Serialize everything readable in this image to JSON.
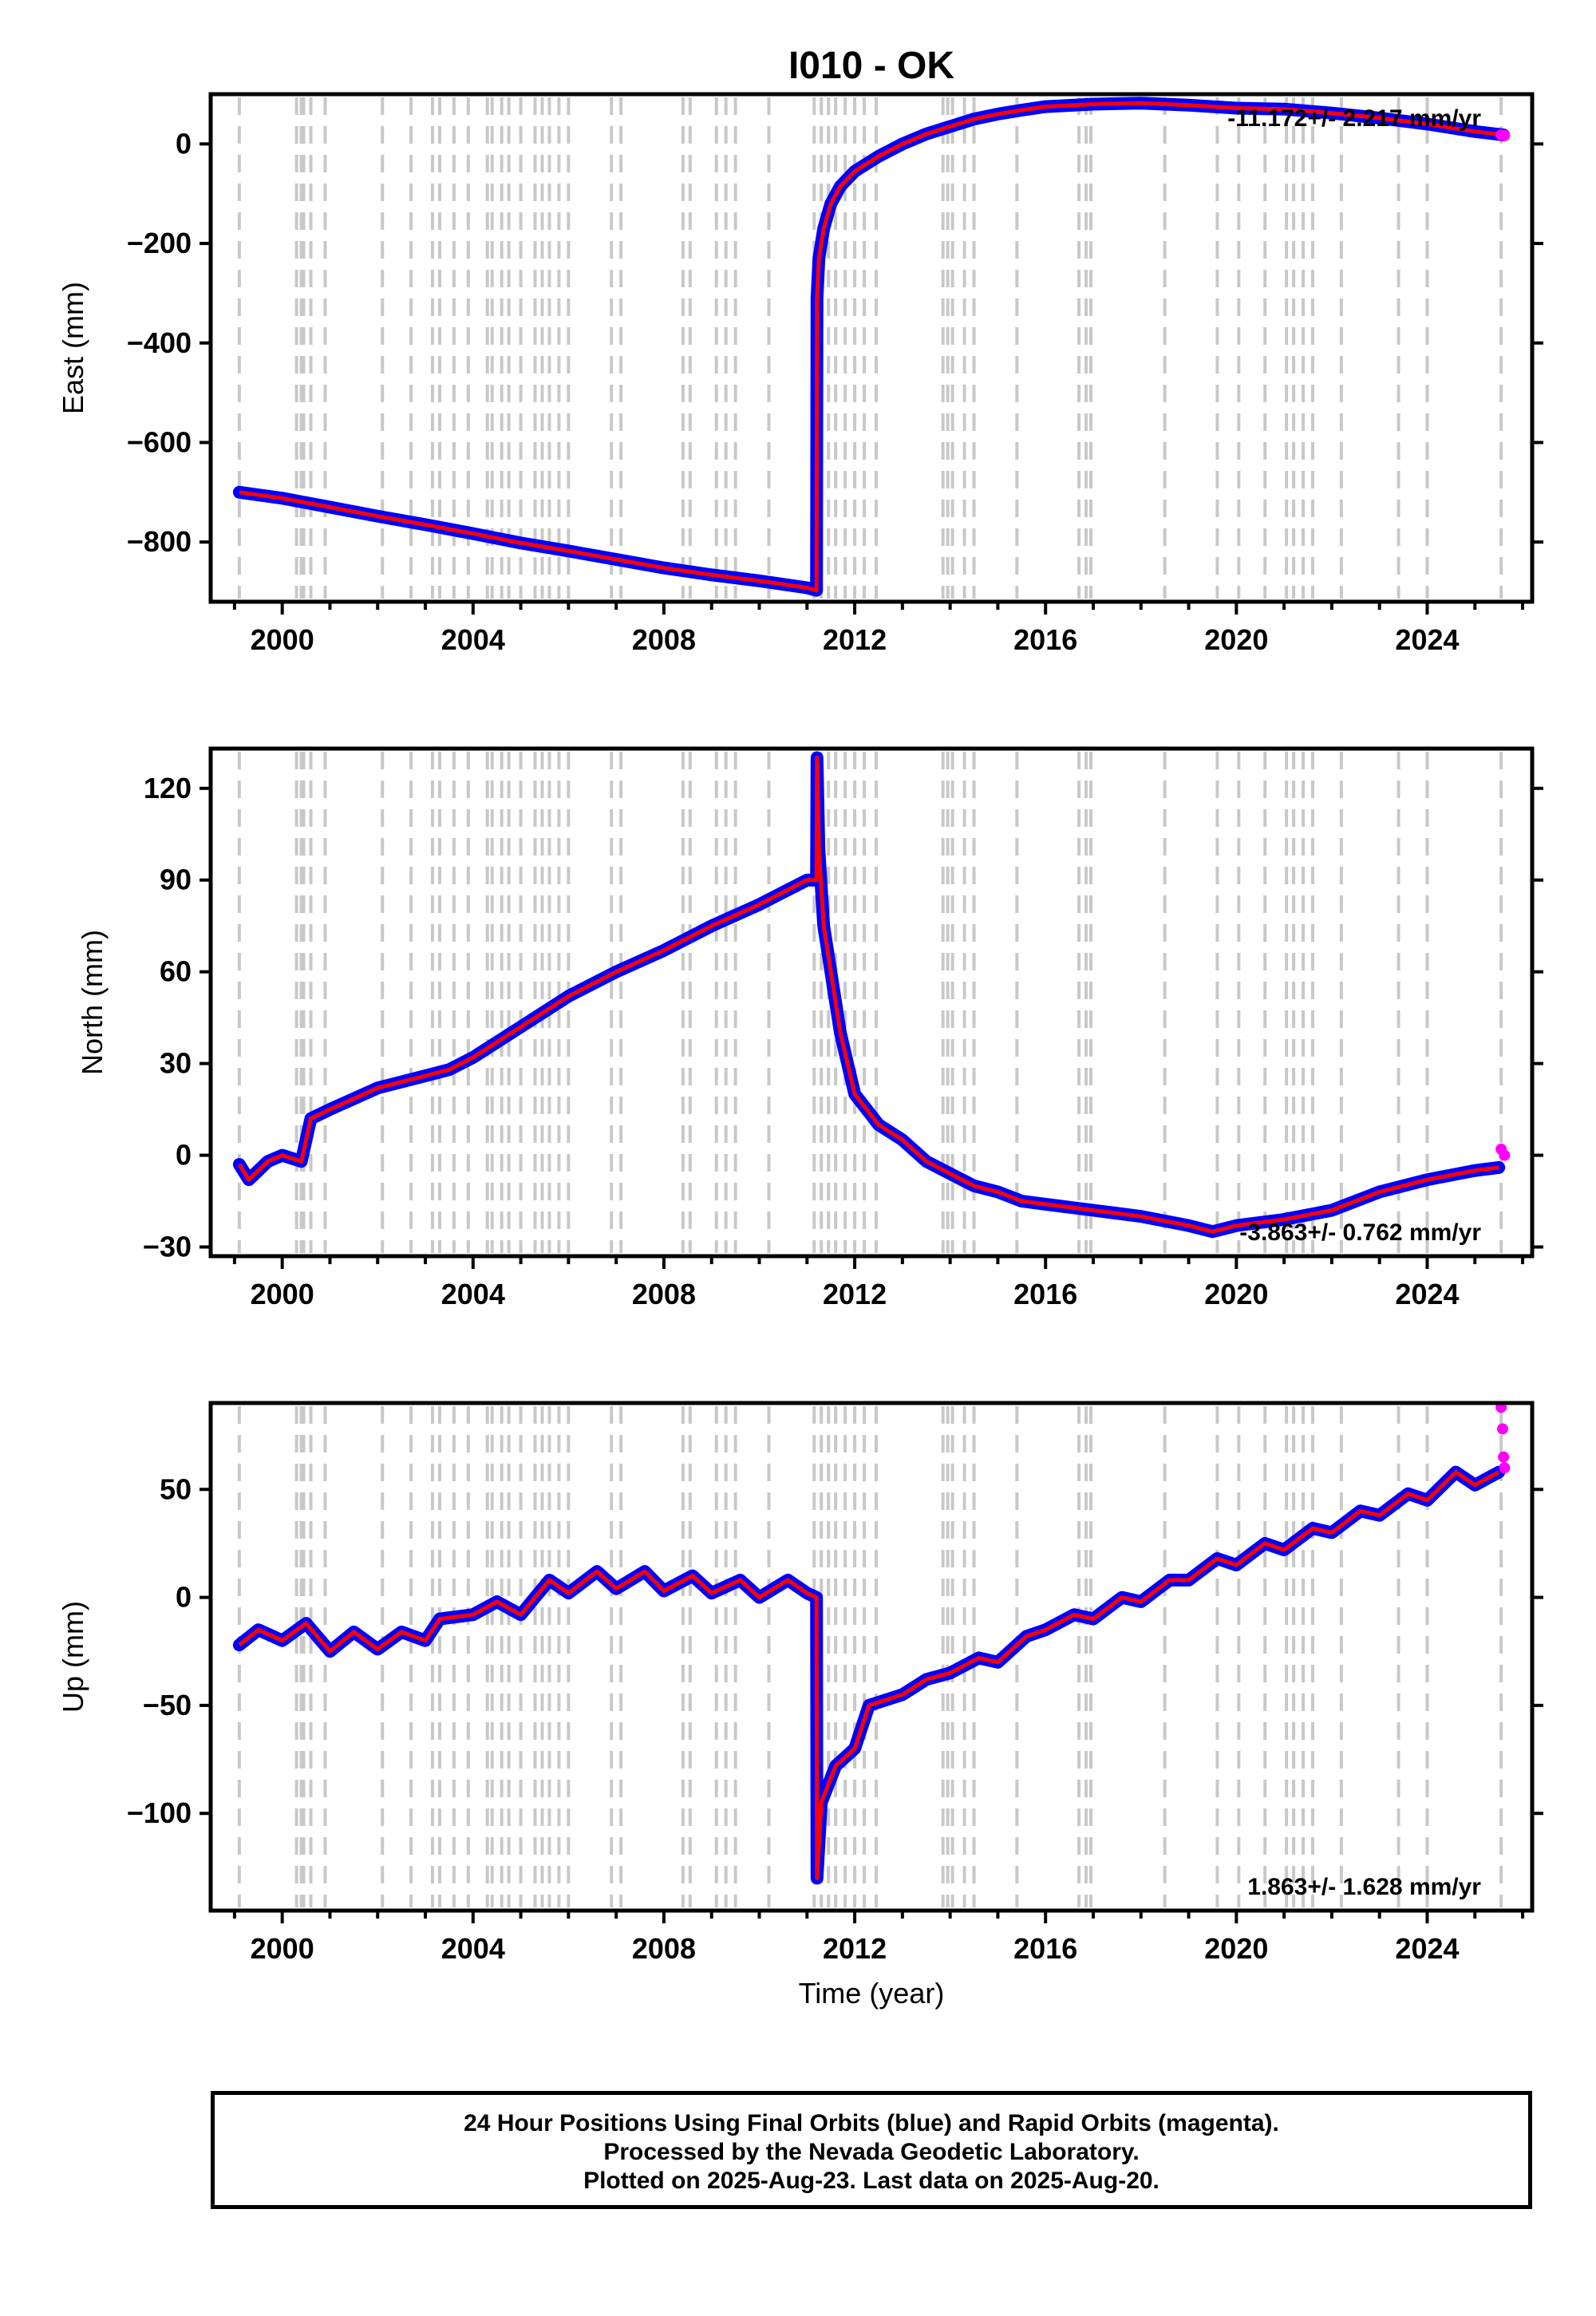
{
  "figure": {
    "title": "I010 - OK",
    "xlabel": "Time (year)"
  },
  "chart_data": [
    {
      "type": "line",
      "ylabel": "East (mm)",
      "xlim": [
        1998.5,
        2026.2
      ],
      "ylim": [
        -920,
        100
      ],
      "yticks": [
        0,
        -200,
        -400,
        -600,
        -800
      ],
      "xticks": [
        2000,
        2004,
        2008,
        2012,
        2016,
        2020,
        2024
      ],
      "rate_text": "-11.172+/- 2.217 mm/yr",
      "series": [
        {
          "color": "#0000ff",
          "values": [
            [
              1999.1,
              -700
            ],
            [
              2000.0,
              -712
            ],
            [
              2001.0,
              -730
            ],
            [
              2002.0,
              -748
            ],
            [
              2003.0,
              -765
            ],
            [
              2004.0,
              -783
            ],
            [
              2005.0,
              -802
            ],
            [
              2006.0,
              -818
            ],
            [
              2007.0,
              -835
            ],
            [
              2008.0,
              -852
            ],
            [
              2009.0,
              -866
            ],
            [
              2010.0,
              -878
            ],
            [
              2011.0,
              -892
            ],
            [
              2011.2,
              -897
            ],
            [
              2011.21,
              -310
            ],
            [
              2011.25,
              -230
            ],
            [
              2011.35,
              -170
            ],
            [
              2011.5,
              -120
            ],
            [
              2011.7,
              -85
            ],
            [
              2012.0,
              -55
            ],
            [
              2012.5,
              -25
            ],
            [
              2013.0,
              0
            ],
            [
              2013.5,
              20
            ],
            [
              2014.0,
              35
            ],
            [
              2014.5,
              50
            ],
            [
              2015.0,
              60
            ],
            [
              2015.5,
              68
            ],
            [
              2016.0,
              75
            ],
            [
              2017.0,
              80
            ],
            [
              2018.0,
              82
            ],
            [
              2019.0,
              78
            ],
            [
              2020.0,
              72
            ],
            [
              2021.0,
              70
            ],
            [
              2022.0,
              62
            ],
            [
              2023.0,
              52
            ],
            [
              2024.0,
              40
            ],
            [
              2025.0,
              25
            ],
            [
              2025.6,
              18
            ]
          ]
        },
        {
          "color": "#ff00ff",
          "values": [
            [
              2025.55,
              18
            ],
            [
              2025.62,
              17
            ]
          ]
        }
      ]
    },
    {
      "type": "line",
      "ylabel": "North (mm)",
      "xlim": [
        1998.5,
        2026.2
      ],
      "ylim": [
        -33,
        133
      ],
      "yticks": [
        120,
        90,
        60,
        30,
        0,
        -30
      ],
      "xticks": [
        2000,
        2004,
        2008,
        2012,
        2016,
        2020,
        2024
      ],
      "rate_text": "-3.863+/- 0.762 mm/yr",
      "series": [
        {
          "color": "#0000ff",
          "values": [
            [
              1999.1,
              -3
            ],
            [
              1999.3,
              -8
            ],
            [
              1999.7,
              -2
            ],
            [
              2000.0,
              0
            ],
            [
              2000.4,
              -2
            ],
            [
              2000.6,
              12
            ],
            [
              2001.0,
              15
            ],
            [
              2002.0,
              22
            ],
            [
              2003.0,
              26
            ],
            [
              2003.5,
              28
            ],
            [
              2004.0,
              32
            ],
            [
              2005.0,
              42
            ],
            [
              2006.0,
              52
            ],
            [
              2007.0,
              60
            ],
            [
              2008.0,
              67
            ],
            [
              2009.0,
              75
            ],
            [
              2010.0,
              82
            ],
            [
              2011.0,
              90
            ],
            [
              2011.2,
              90
            ],
            [
              2011.21,
              130
            ],
            [
              2011.25,
              100
            ],
            [
              2011.35,
              75
            ],
            [
              2011.5,
              60
            ],
            [
              2011.7,
              40
            ],
            [
              2012.0,
              20
            ],
            [
              2012.5,
              10
            ],
            [
              2013.0,
              5
            ],
            [
              2013.5,
              -2
            ],
            [
              2014.0,
              -6
            ],
            [
              2014.5,
              -10
            ],
            [
              2015.0,
              -12
            ],
            [
              2015.5,
              -15
            ],
            [
              2016.0,
              -16
            ],
            [
              2017.0,
              -18
            ],
            [
              2018.0,
              -20
            ],
            [
              2019.0,
              -23
            ],
            [
              2019.5,
              -25
            ],
            [
              2020.0,
              -23
            ],
            [
              2021.0,
              -21
            ],
            [
              2022.0,
              -18
            ],
            [
              2023.0,
              -12
            ],
            [
              2024.0,
              -8
            ],
            [
              2025.0,
              -5
            ],
            [
              2025.5,
              -4
            ]
          ]
        },
        {
          "color": "#ff00ff",
          "values": [
            [
              2025.55,
              2
            ],
            [
              2025.62,
              0
            ]
          ]
        }
      ]
    },
    {
      "type": "line",
      "ylabel": "Up (mm)",
      "xlim": [
        1998.5,
        2026.2
      ],
      "ylim": [
        -145,
        90
      ],
      "yticks": [
        50,
        0,
        -50,
        -100
      ],
      "xticks": [
        2000,
        2004,
        2008,
        2012,
        2016,
        2020,
        2024
      ],
      "rate_text": "1.863+/- 1.628 mm/yr",
      "series": [
        {
          "color": "#0000ff",
          "values": [
            [
              1999.1,
              -22
            ],
            [
              1999.5,
              -15
            ],
            [
              2000.0,
              -20
            ],
            [
              2000.5,
              -12
            ],
            [
              2001.0,
              -25
            ],
            [
              2001.5,
              -16
            ],
            [
              2002.0,
              -24
            ],
            [
              2002.5,
              -16
            ],
            [
              2003.0,
              -20
            ],
            [
              2003.3,
              -10
            ],
            [
              2004.0,
              -8
            ],
            [
              2004.5,
              -2
            ],
            [
              2005.0,
              -8
            ],
            [
              2005.6,
              8
            ],
            [
              2006.0,
              2
            ],
            [
              2006.6,
              12
            ],
            [
              2007.0,
              4
            ],
            [
              2007.6,
              12
            ],
            [
              2008.0,
              3
            ],
            [
              2008.6,
              10
            ],
            [
              2009.0,
              2
            ],
            [
              2009.6,
              8
            ],
            [
              2010.0,
              0
            ],
            [
              2010.6,
              8
            ],
            [
              2011.0,
              2
            ],
            [
              2011.2,
              0
            ],
            [
              2011.21,
              -130
            ],
            [
              2011.3,
              -95
            ],
            [
              2011.6,
              -78
            ],
            [
              2012.0,
              -70
            ],
            [
              2012.3,
              -50
            ],
            [
              2013.0,
              -45
            ],
            [
              2013.5,
              -38
            ],
            [
              2014.0,
              -35
            ],
            [
              2014.6,
              -28
            ],
            [
              2015.0,
              -30
            ],
            [
              2015.6,
              -18
            ],
            [
              2016.0,
              -15
            ],
            [
              2016.6,
              -8
            ],
            [
              2017.0,
              -10
            ],
            [
              2017.6,
              0
            ],
            [
              2018.0,
              -2
            ],
            [
              2018.6,
              8
            ],
            [
              2019.0,
              8
            ],
            [
              2019.6,
              18
            ],
            [
              2020.0,
              15
            ],
            [
              2020.6,
              25
            ],
            [
              2021.0,
              22
            ],
            [
              2021.6,
              32
            ],
            [
              2022.0,
              30
            ],
            [
              2022.6,
              40
            ],
            [
              2023.0,
              38
            ],
            [
              2023.6,
              48
            ],
            [
              2024.0,
              45
            ],
            [
              2024.6,
              58
            ],
            [
              2025.0,
              52
            ],
            [
              2025.5,
              58
            ]
          ]
        },
        {
          "color": "#ff00ff",
          "values": [
            [
              2025.55,
              88
            ],
            [
              2025.58,
              78
            ],
            [
              2025.6,
              65
            ],
            [
              2025.62,
              60
            ]
          ]
        }
      ]
    }
  ],
  "footer": {
    "line1": "24 Hour Positions Using Final Orbits (blue) and Rapid Orbits (magenta).",
    "line2": "Processed by the Nevada Geodetic Laboratory.",
    "line3": "Plotted on 2025-Aug-23. Last data on 2025-Aug-20."
  }
}
